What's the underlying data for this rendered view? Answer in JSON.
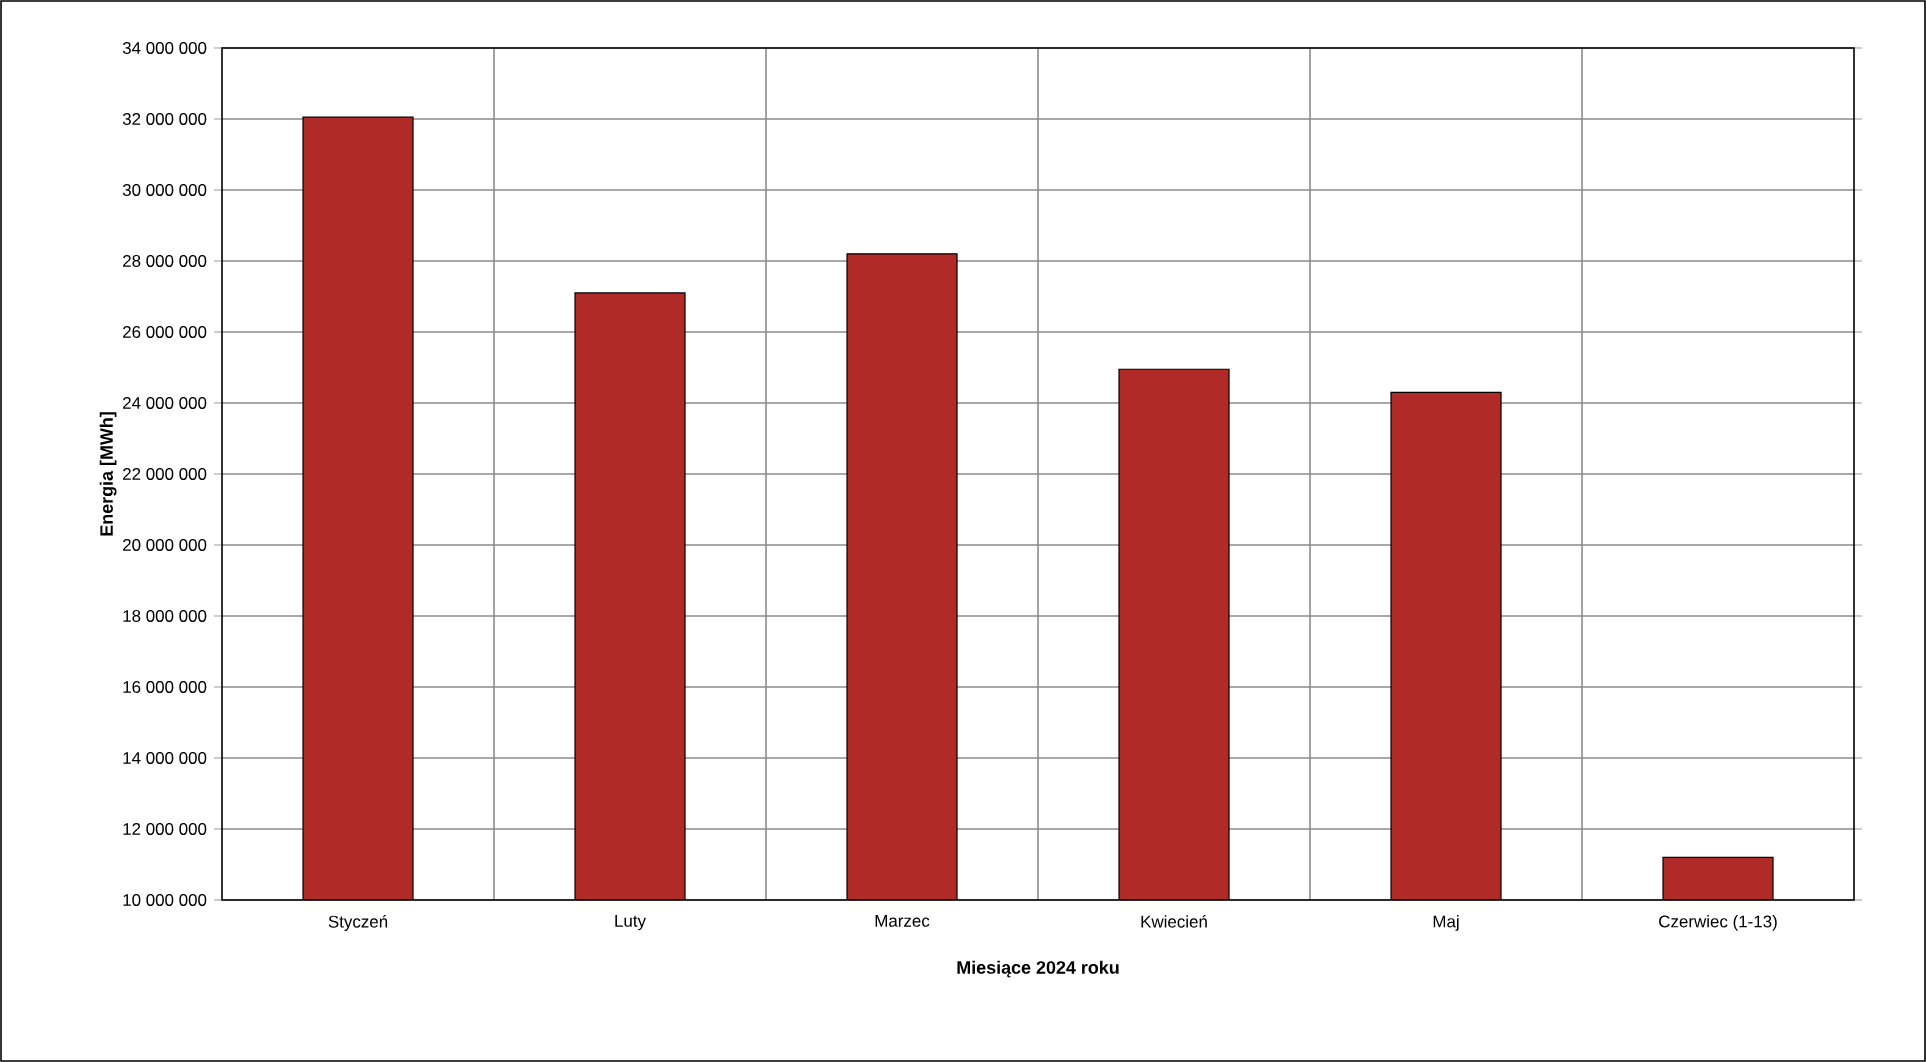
{
  "chart_data": {
    "type": "bar",
    "xlabel": "Miesiące 2024  roku",
    "ylabel": "Energia  [MWh]",
    "categories": [
      "Styczeń",
      "Luty",
      "Marzec",
      "Kwiecień",
      "Maj",
      "Czerwiec (1-13)"
    ],
    "values": [
      32050000,
      27100000,
      28200000,
      24950000,
      24300000,
      11200000
    ],
    "color": "#b02a27",
    "ylim": [
      10000000,
      34000000
    ],
    "yticks": [
      {
        "value": 10000000,
        "label": "10 000 000"
      },
      {
        "value": 12000000,
        "label": "12 000 000"
      },
      {
        "value": 14000000,
        "label": "14 000 000"
      },
      {
        "value": 16000000,
        "label": "16 000 000"
      },
      {
        "value": 18000000,
        "label": "18 000 000"
      },
      {
        "value": 20000000,
        "label": "20 000 000"
      },
      {
        "value": 22000000,
        "label": "22 000 000"
      },
      {
        "value": 24000000,
        "label": "24 000 000"
      },
      {
        "value": 26000000,
        "label": "26 000 000"
      },
      {
        "value": 28000000,
        "label": "28 000 000"
      },
      {
        "value": 30000000,
        "label": "30 000 000"
      },
      {
        "value": 32000000,
        "label": "32 000 000"
      },
      {
        "value": 34000000,
        "label": "34 000 000"
      }
    ],
    "grid": true
  }
}
